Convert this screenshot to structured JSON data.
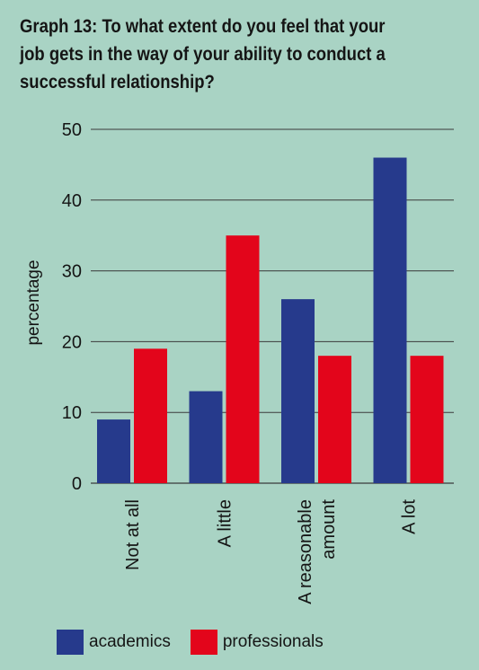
{
  "chart_data": {
    "type": "bar",
    "title": "Graph 13: To what extent do you feel that your job gets in the way of your ability to conduct a successful relationship?",
    "title_lines": [
      "Graph 13: To what extent do you feel that your",
      "job gets in the way of your ability to conduct a",
      "successful relationship?"
    ],
    "ylabel": "percentage",
    "xlabel": "",
    "ylim": [
      0,
      50
    ],
    "yticks": [
      0,
      10,
      20,
      30,
      40,
      50
    ],
    "grid": true,
    "legend_position": "bottom-left",
    "categories": [
      "Not at all",
      "A little",
      "A reasonable amount",
      "A lot"
    ],
    "category_label_lines": [
      [
        "Not at all"
      ],
      [
        "A little"
      ],
      [
        "A reasonable",
        "amount"
      ],
      [
        "A lot"
      ]
    ],
    "series": [
      {
        "name": "academics",
        "color": "#263a8c",
        "values": [
          9,
          13,
          26,
          46
        ]
      },
      {
        "name": "professionals",
        "color": "#e3051b",
        "values": [
          19,
          35,
          18,
          18
        ]
      }
    ]
  },
  "colors": {
    "background": "#a9d3c4",
    "gridline": "#3a3a3a",
    "text": "#151515"
  }
}
